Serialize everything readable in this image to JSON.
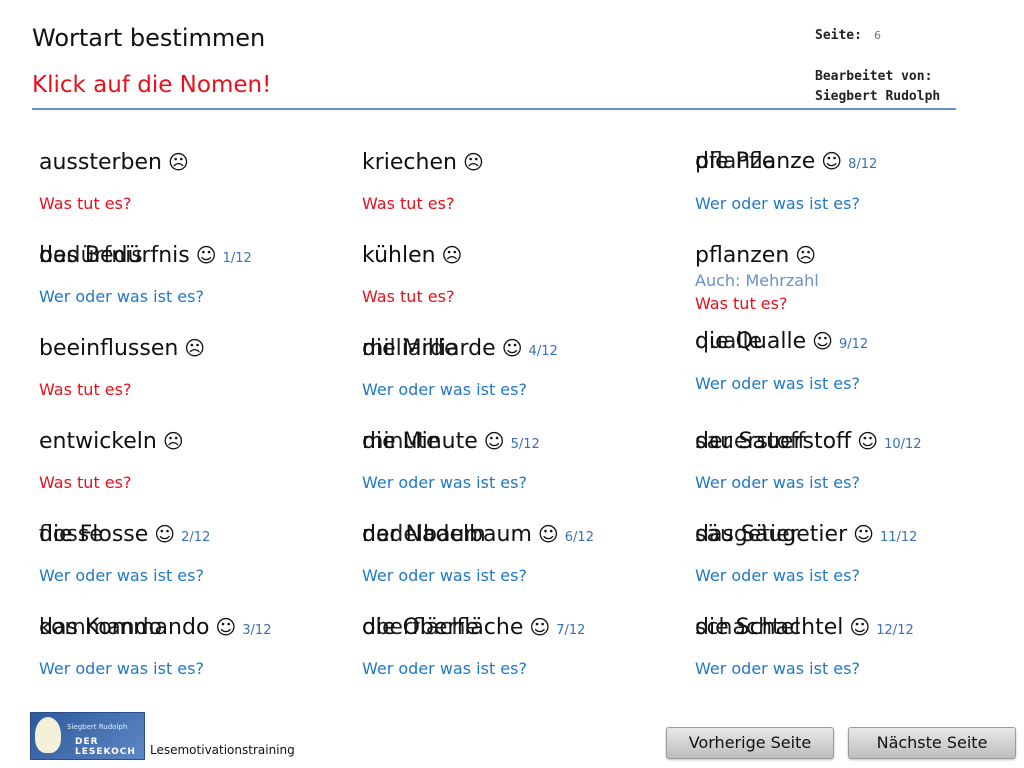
{
  "header": {
    "title": "Wortart bestimmen",
    "subtitle": "Klick auf die Nomen!",
    "page_label": "Seite:",
    "page_number": "6",
    "edited_by_label": "Bearbeitet von:",
    "edited_by_name": "Siegbert Rudolph"
  },
  "words": {
    "c1": [
      {
        "text": "aussterben",
        "mark": "☹",
        "count": "",
        "ghost": "",
        "hint": "Was tut es?"
      },
      {
        "text": "das Bedürfnis",
        "mark": "☺",
        "count": "1/12",
        "ghost": "bedürfnis",
        "hint": "Wer oder was ist es?"
      },
      {
        "text": "beeinflussen",
        "mark": "☹",
        "count": "",
        "ghost": "",
        "hint": "Was tut es?"
      },
      {
        "text": "entwickeln",
        "mark": "☹",
        "count": "",
        "ghost": "",
        "hint": "Was tut es?"
      },
      {
        "text": "die Flosse",
        "mark": "☺",
        "count": "2/12",
        "ghost": "flosse",
        "hint": "Wer oder was ist es?"
      },
      {
        "text": "das Kommando",
        "mark": "☺",
        "count": "3/12",
        "ghost": "kommando",
        "hint": "Wer oder was ist es?"
      }
    ],
    "c2": [
      {
        "text": "kriechen",
        "mark": "☹",
        "count": "",
        "ghost": "",
        "hint": "Was tut es?"
      },
      {
        "text": "kühlen",
        "mark": "☹",
        "count": "",
        "ghost": "",
        "hint": "Was tut es?"
      },
      {
        "text": "die Milliarde",
        "mark": "☺",
        "count": "4/12",
        "ghost": "milliarde",
        "hint": "Wer oder was ist es?"
      },
      {
        "text": "die Minute",
        "mark": "☺",
        "count": "5/12",
        "ghost": "minute",
        "hint": "Wer oder was ist es?"
      },
      {
        "text": "der Nadelbaum",
        "mark": "☺",
        "count": "6/12",
        "ghost": "nadelbaum",
        "hint": "Wer oder was ist es?"
      },
      {
        "text": "die Oberfläche",
        "mark": "☺",
        "count": "7/12",
        "ghost": "oberfläche",
        "hint": "Wer oder was ist es?"
      }
    ],
    "c3": [
      {
        "text": "die Pflanze",
        "mark": "☺",
        "count": "8/12",
        "ghost": "pflanze",
        "hint": "Wer oder was ist es?"
      },
      {
        "text": "pflanzen",
        "mark": "☹",
        "count": "",
        "ghost": "",
        "hint": "Was tut es?",
        "note": "Auch: Mehrzahl"
      },
      {
        "text": "die Qualle",
        "mark": "☺",
        "count": "9/12",
        "ghost": "qualle",
        "hint": "Wer oder was ist es?"
      },
      {
        "text": "der Sauerstoff",
        "mark": "☺",
        "count": "10/12",
        "ghost": "sauerstoff",
        "hint": "Wer oder was ist es?"
      },
      {
        "text": "das Säugetier",
        "mark": "☺",
        "count": "11/12",
        "ghost": "säugetier",
        "hint": "Wer oder was ist es?"
      },
      {
        "text": "die Schachtel",
        "mark": "☺",
        "count": "12/12",
        "ghost": "schachtel",
        "hint": "Wer oder was ist es?"
      }
    ]
  },
  "footer": {
    "logo_line1": "Siegbert Rudolph",
    "logo_line2": "DER LESEKOCH",
    "training_label": "Lesemotivationstraining",
    "prev_button": "Vorherige Seite",
    "next_button": "Nächste Seite"
  },
  "colors": {
    "verb_hint": "#e8101c",
    "noun_hint": "#1f78c8",
    "accent_rule": "#6a8fc5"
  }
}
